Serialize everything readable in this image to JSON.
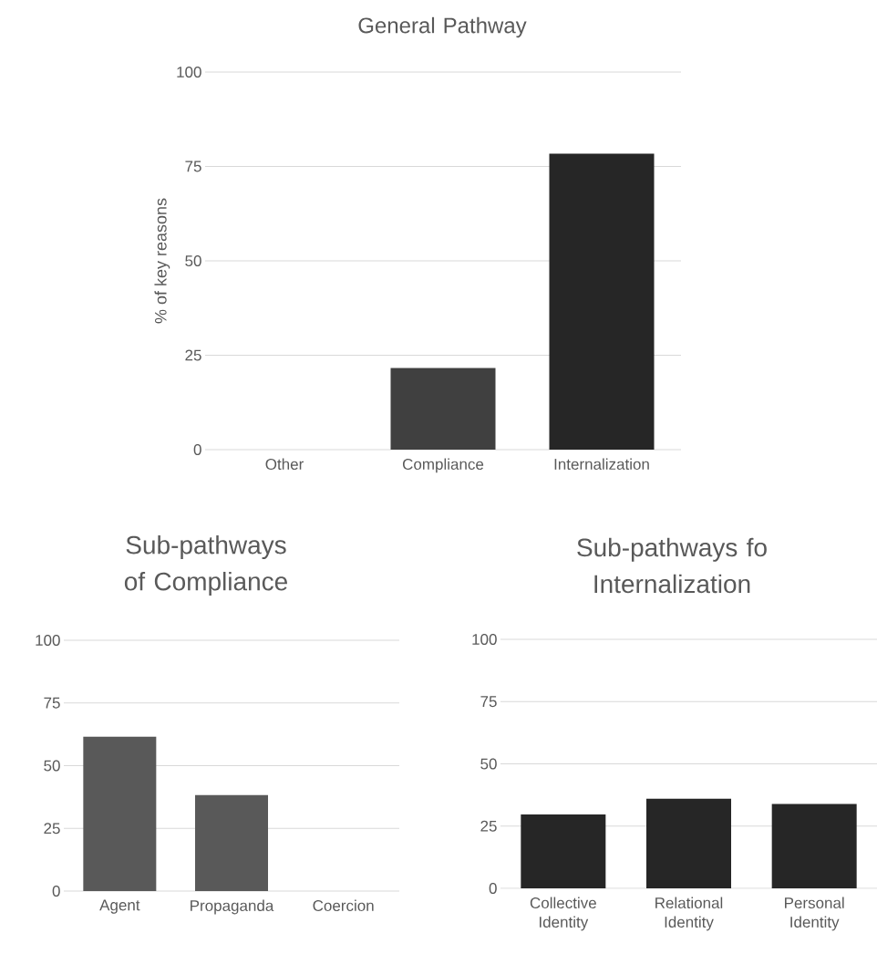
{
  "chart_data": [
    {
      "type": "bar",
      "title": "General Pathway",
      "ylabel": "% of key reasons",
      "categories": [
        "Other",
        "Compliance",
        "Internalization"
      ],
      "values": [
        0,
        21.6,
        78.4
      ],
      "colors": [
        "#404040",
        "#404040",
        "#262626"
      ],
      "ylim": [
        0,
        100
      ],
      "yticks": [
        0,
        25,
        50,
        75,
        100
      ],
      "grid": "y"
    },
    {
      "type": "bar",
      "title": "Sub-pathways of Compliance",
      "categories": [
        "Agent",
        "Propaganda",
        "Coercion"
      ],
      "values": [
        61.5,
        38.3,
        0
      ],
      "colors": [
        "#595959",
        "#595959",
        "#595959"
      ],
      "ylim": [
        0,
        100
      ],
      "yticks": [
        0,
        25,
        50,
        75,
        100
      ],
      "grid": "y"
    },
    {
      "type": "bar",
      "title": "Sub-pathways fo Internalization",
      "categories": [
        "Collective Identity",
        "Relational Identity",
        "Personal Identity"
      ],
      "values": [
        29.7,
        36.0,
        33.9
      ],
      "colors": [
        "#262626",
        "#262626",
        "#262626"
      ],
      "ylim": [
        0,
        100
      ],
      "yticks": [
        0,
        25,
        50,
        75,
        100
      ],
      "grid": "y"
    }
  ]
}
